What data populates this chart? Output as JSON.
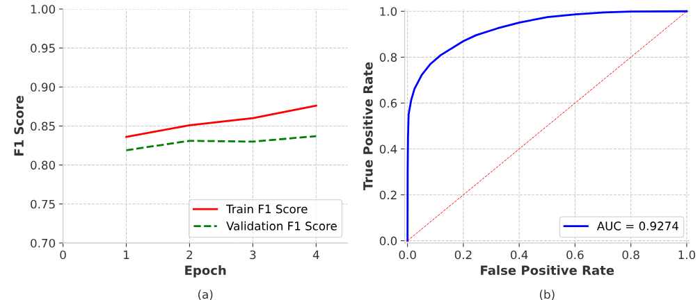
{
  "chart_data": [
    {
      "type": "line",
      "xlabel": "Epoch",
      "ylabel": "F1 Score",
      "annotations": [
        "(a)"
      ],
      "x": [
        1,
        2,
        3,
        4
      ],
      "series": [
        {
          "name": "Train F1 Score",
          "color": "#ff0000",
          "values": [
            0.836,
            0.851,
            0.86,
            0.876
          ],
          "line_style": "solid"
        },
        {
          "name": "Validation F1 Score",
          "color": "#008000",
          "values": [
            0.819,
            0.831,
            0.83,
            0.837
          ],
          "line_style": "dashed"
        }
      ],
      "xlim": [
        0,
        4.5
      ],
      "xticks": [
        0,
        1,
        2,
        3,
        4
      ],
      "ylim": [
        0.7,
        1.0
      ],
      "yticks": [
        {
          "value": 0.7,
          "label": "0.70"
        },
        {
          "value": 0.75,
          "label": "0.75"
        },
        {
          "value": 0.8,
          "label": "0.80"
        },
        {
          "value": 0.85,
          "label": "0.85"
        },
        {
          "value": 0.9,
          "label": "0.90"
        },
        {
          "value": 0.95,
          "label": "0.95"
        },
        {
          "value": 1.0,
          "label": "1.00"
        }
      ],
      "grid": true,
      "legend": "bottom right",
      "marker": "none"
    },
    {
      "type": "line",
      "xlabel": "False Positive Rate",
      "ylabel": "True Positive Rate",
      "annotations": [
        "(b)"
      ],
      "series": [
        {
          "name": "AUC = 0.9274",
          "color": "#0000ff",
          "line_style": "solid",
          "x": [
            0,
            0.0005,
            0.0017,
            0.004,
            0.013,
            0.025,
            0.051,
            0.081,
            0.119,
            0.2,
            0.246,
            0.323,
            0.402,
            0.501,
            0.603,
            0.705,
            0.802,
            1.0
          ],
          "values": [
            0,
            0.3,
            0.449,
            0.551,
            0.612,
            0.662,
            0.723,
            0.769,
            0.809,
            0.87,
            0.896,
            0.926,
            0.951,
            0.975,
            0.987,
            0.995,
            0.999,
            1.0
          ]
        },
        {
          "color": "#ff0000",
          "line_style": "dashed",
          "x": [
            0,
            1
          ],
          "values": [
            0,
            1
          ]
        }
      ],
      "xlim": [
        -0.01,
        1.01
      ],
      "xticks": [
        {
          "value": 0,
          "label": "0.0"
        },
        {
          "value": 0.2,
          "label": "0.2"
        },
        {
          "value": 0.4,
          "label": "0.4"
        },
        {
          "value": 0.6,
          "label": "0.6"
        },
        {
          "value": 0.8,
          "label": "0.8"
        },
        {
          "value": 1.0,
          "label": "1.0"
        }
      ],
      "ylim": [
        -0.01,
        1.01
      ],
      "yticks": [
        {
          "value": 0,
          "label": "0.0"
        },
        {
          "value": 0.2,
          "label": "0.2"
        },
        {
          "value": 0.4,
          "label": "0.4"
        },
        {
          "value": 0.6,
          "label": "0.6"
        },
        {
          "value": 0.8,
          "label": "0.8"
        },
        {
          "value": 1.0,
          "label": "1.0"
        }
      ],
      "grid": true,
      "legend": "bottom right",
      "marker": "none"
    }
  ]
}
